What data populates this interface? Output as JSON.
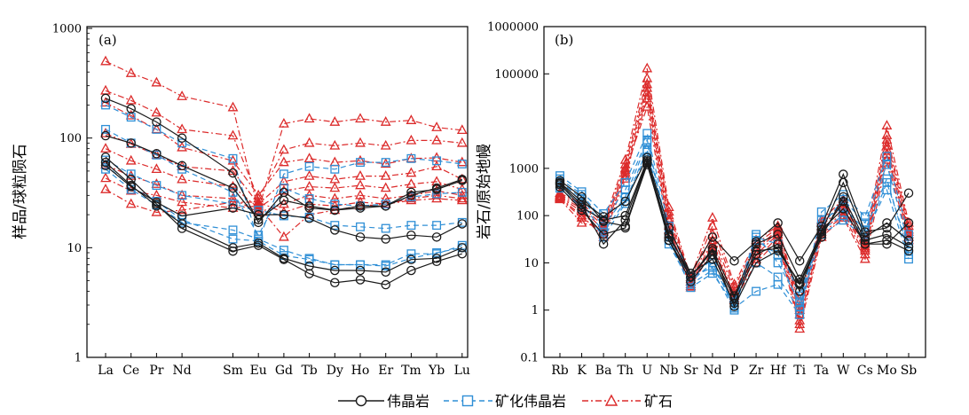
{
  "colors": {
    "pegmatite": "#1a1a1a",
    "mineralized_pegmatite": "#2f8fd6",
    "ore": "#dc2b2b"
  },
  "chart_data": [
    {
      "panel_label": "(a)",
      "type": "line",
      "ylabel": "样品/球粒陨石",
      "yscale": "log",
      "ylim": [
        1,
        1000
      ],
      "y_ticks": [
        "1",
        "10",
        "100",
        "1000"
      ],
      "categories": [
        "La",
        "Ce",
        "Pr",
        "Nd",
        "Sm",
        "Eu",
        "Gd",
        "Tb",
        "Dy",
        "Ho",
        "Er",
        "Tm",
        "Yb",
        "Lu"
      ],
      "x_positions": [
        1,
        2,
        3,
        4,
        6,
        7,
        8,
        9,
        10,
        11,
        12,
        13,
        14,
        15
      ],
      "series": [
        {
          "group": "pegmatite",
          "values": [
            230,
            185,
            140,
            100,
            48,
            17,
            32,
            23,
            22,
            24,
            24,
            30,
            35,
            42
          ]
        },
        {
          "group": "pegmatite",
          "values": [
            105,
            90,
            72,
            56,
            35,
            18,
            27,
            24,
            22,
            23,
            24,
            32,
            34,
            41
          ]
        },
        {
          "group": "pegmatite",
          "values": [
            67,
            42,
            25,
            15,
            9.3,
            10.5,
            7.8,
            5.8,
            4.8,
            5.1,
            4.6,
            6.2,
            7.5,
            8.8
          ]
        },
        {
          "group": "pegmatite",
          "values": [
            60,
            37,
            24,
            16.5,
            10,
            11,
            8,
            6.8,
            6.2,
            6.2,
            6,
            7.8,
            8,
            10
          ]
        },
        {
          "group": "pegmatite",
          "values": [
            56,
            36,
            26,
            19.5,
            23,
            20,
            20,
            18.5,
            14.5,
            12.5,
            12,
            13,
            12.5,
            16.5
          ]
        },
        {
          "group": "mineralized_pegmatite",
          "values": [
            200,
            155,
            120,
            90,
            65,
            11.5,
            47,
            55,
            52,
            60,
            60,
            65,
            62,
            58
          ]
        },
        {
          "group": "mineralized_pegmatite",
          "values": [
            120,
            90,
            70,
            52,
            32,
            13,
            35,
            28,
            25,
            24,
            25,
            29,
            31,
            32
          ]
        },
        {
          "group": "mineralized_pegmatite",
          "values": [
            63,
            47,
            37,
            30,
            25,
            22,
            19.5,
            19,
            16,
            15.5,
            15,
            16,
            16,
            17
          ]
        },
        {
          "group": "mineralized_pegmatite",
          "values": [
            57,
            36,
            26.5,
            18,
            12,
            11.5,
            8.5,
            7.8,
            7,
            7,
            7,
            8.8,
            8.8,
            10.5
          ]
        },
        {
          "group": "mineralized_pegmatite",
          "values": [
            52,
            34,
            24.5,
            17,
            14.5,
            12,
            9.5,
            8,
            7,
            7,
            6.8,
            8,
            9,
            10
          ]
        },
        {
          "group": "ore",
          "values": [
            500,
            390,
            320,
            240,
            190,
            22,
            135,
            150,
            140,
            150,
            140,
            145,
            125,
            118
          ]
        },
        {
          "group": "ore",
          "values": [
            270,
            220,
            170,
            120,
            105,
            28,
            78,
            90,
            85,
            90,
            85,
            95,
            95,
            90
          ]
        },
        {
          "group": "ore",
          "values": [
            210,
            160,
            120,
            82,
            62,
            30,
            60,
            65,
            60,
            62,
            58,
            65,
            66,
            60
          ]
        },
        {
          "group": "ore",
          "values": [
            110,
            88,
            70,
            55,
            50,
            25,
            40,
            45,
            42,
            45,
            45,
            48,
            55,
            42
          ]
        },
        {
          "group": "ore",
          "values": [
            80,
            62,
            52,
            42,
            36,
            23,
            33,
            36,
            35,
            37,
            35,
            38,
            40,
            34
          ]
        },
        {
          "group": "ore",
          "values": [
            57,
            45,
            38,
            30,
            28,
            21,
            25,
            30,
            28,
            30,
            28,
            30,
            33,
            30
          ]
        },
        {
          "group": "ore",
          "values": [
            43,
            33,
            30,
            26,
            23,
            24,
            12.5,
            20,
            22,
            24,
            25,
            28,
            30,
            28
          ]
        },
        {
          "group": "ore",
          "values": [
            34,
            25,
            21,
            22,
            26,
            26,
            21,
            25,
            24,
            26,
            25,
            27,
            28,
            27
          ]
        }
      ]
    },
    {
      "panel_label": "(b)",
      "type": "line",
      "ylabel": "岩石/原始地幔",
      "yscale": "log",
      "ylim": [
        0.1,
        1000000
      ],
      "y_ticks": [
        "0.1",
        "1",
        "10",
        "100",
        "1000",
        "100000",
        "1000000"
      ],
      "categories": [
        "Rb",
        "K",
        "Ba",
        "Th",
        "U",
        "Nb",
        "Sr",
        "Nd",
        "P",
        "Zr",
        "Hf",
        "Ti",
        "Ta",
        "W",
        "Cs",
        "Mo",
        "Sb"
      ],
      "series": [
        {
          "group": "pegmatite",
          "values": [
            500,
            200,
            95,
            200,
            1700,
            55,
            6,
            35,
            11,
            28,
            70,
            11,
            60,
            750,
            45,
            55,
            300
          ]
        },
        {
          "group": "pegmatite",
          "values": [
            450,
            150,
            80,
            100,
            1500,
            40,
            5,
            20,
            2,
            25,
            40,
            4.5,
            45,
            500,
            35,
            70,
            30
          ]
        },
        {
          "group": "pegmatite",
          "values": [
            550,
            250,
            75,
            60,
            1300,
            30,
            4,
            15,
            1.8,
            18,
            20,
            3.5,
            35,
            250,
            30,
            40,
            22
          ]
        },
        {
          "group": "pegmatite",
          "values": [
            400,
            130,
            40,
            55,
            1200,
            35,
            6,
            12,
            1.4,
            15,
            25,
            2.5,
            50,
            140,
            25,
            30,
            18
          ]
        },
        {
          "group": "pegmatite",
          "values": [
            480,
            170,
            25,
            80,
            1400,
            30,
            5,
            18,
            1.2,
            10,
            18,
            3.8,
            40,
            200,
            25,
            25,
            70
          ]
        },
        {
          "group": "mineralized_pegmatite",
          "values": [
            700,
            320,
            110,
            500,
            5500,
            60,
            5,
            12,
            1.2,
            10,
            5,
            1,
            120,
            280,
            95,
            1800,
            40
          ]
        },
        {
          "group": "mineralized_pegmatite",
          "values": [
            600,
            280,
            80,
            350,
            4000,
            40,
            5,
            8,
            1.5,
            40,
            10,
            1.5,
            60,
            220,
            70,
            1200,
            25
          ]
        },
        {
          "group": "mineralized_pegmatite",
          "values": [
            520,
            230,
            60,
            250,
            3500,
            35,
            4,
            10,
            1.1,
            2.5,
            3.5,
            0.8,
            80,
            150,
            50,
            600,
            15
          ]
        },
        {
          "group": "mineralized_pegmatite",
          "values": [
            450,
            180,
            45,
            200,
            2500,
            30,
            3,
            6,
            1.3,
            35,
            25,
            2,
            50,
            100,
            40,
            350,
            12
          ]
        },
        {
          "group": "mineralized_pegmatite",
          "values": [
            380,
            150,
            35,
            180,
            2200,
            25,
            3.5,
            7,
            1,
            30,
            15,
            1.2,
            40,
            80,
            35,
            500,
            20
          ]
        },
        {
          "group": "ore",
          "values": [
            300,
            180,
            70,
            1500,
            130000,
            150,
            5,
            90,
            3.5,
            30,
            60,
            1.5,
            80,
            220,
            30,
            8000,
            70
          ]
        },
        {
          "group": "ore",
          "values": [
            280,
            160,
            60,
            1200,
            80000,
            120,
            4.5,
            60,
            3,
            25,
            55,
            1.2,
            70,
            180,
            25,
            5000,
            60
          ]
        },
        {
          "group": "ore",
          "values": [
            260,
            140,
            50,
            1000,
            60000,
            100,
            4,
            40,
            2.5,
            20,
            50,
            1,
            60,
            160,
            22,
            4000,
            50
          ]
        },
        {
          "group": "ore",
          "values": [
            250,
            120,
            40,
            800,
            50000,
            80,
            3.5,
            30,
            2,
            18,
            45,
            0.8,
            50,
            140,
            20,
            3000,
            45
          ]
        },
        {
          "group": "ore",
          "values": [
            240,
            100,
            35,
            600,
            40000,
            60,
            3,
            25,
            1.8,
            15,
            40,
            0.6,
            45,
            120,
            18,
            2000,
            40
          ]
        },
        {
          "group": "ore",
          "values": [
            230,
            90,
            45,
            700,
            30000,
            50,
            4,
            20,
            2.2,
            12,
            35,
            0.5,
            40,
            100,
            15,
            2500,
            35
          ]
        },
        {
          "group": "ore",
          "values": [
            220,
            70,
            55,
            900,
            20000,
            40,
            3.2,
            18,
            1.6,
            10,
            30,
            0.4,
            35,
            90,
            12,
            1500,
            30
          ]
        }
      ]
    }
  ],
  "legend": {
    "items": [
      {
        "key": "pegmatite",
        "label": "伟晶岩"
      },
      {
        "key": "mineralized_pegmatite",
        "label": "矿化伟晶岩"
      },
      {
        "key": "ore",
        "label": "矿石"
      }
    ]
  }
}
